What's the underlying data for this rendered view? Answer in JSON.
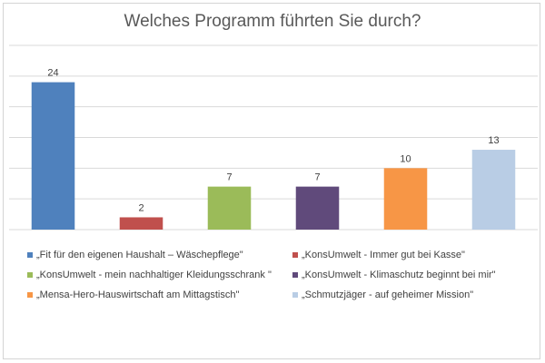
{
  "chart_data": {
    "type": "bar",
    "title": "Welches Programm führten Sie durch?",
    "categories": [
      "„Fit für den eigenen Haushalt – Wäschepflege\"",
      "„KonsUmwelt - Immer gut bei Kasse\"",
      "„KonsUmwelt - mein nachhaltiger Kleidungsschrank \"",
      "„KonsUmwelt -  Klimaschutz beginnt bei mir\"",
      "„Mensa-Hero-Hauswirtschaft am Mittagstisch\"",
      "„Schmutzjäger - auf geheimer Mission\""
    ],
    "values": [
      24,
      2,
      7,
      7,
      10,
      13
    ],
    "data_labels": [
      "24",
      "2",
      "7",
      "7",
      "10",
      "13"
    ],
    "colors": [
      "#4f81bd",
      "#c0504d",
      "#9bbb59",
      "#604a7b",
      "#f79646",
      "#b9cde5"
    ],
    "ylim": [
      0,
      30
    ],
    "gridlines": true,
    "axis_tick_labels_shown": false,
    "legend_position": "bottom"
  }
}
